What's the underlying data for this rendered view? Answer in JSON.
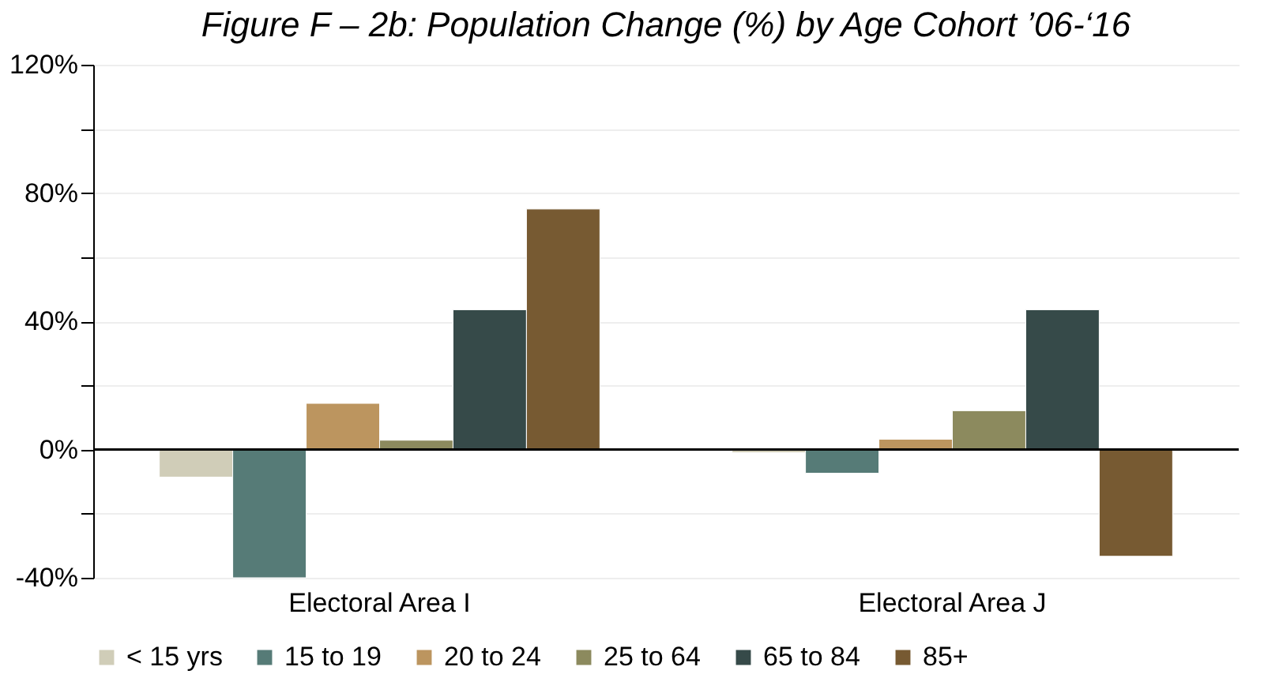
{
  "chart_data": {
    "type": "bar",
    "title": "Figure F – 2b: Population Change (%) by Age Cohort ’06-‘16",
    "categories": [
      "Electoral Area I",
      "Electoral Area J"
    ],
    "series": [
      {
        "name": "< 15 yrs",
        "color": "#d0cdb8",
        "values": [
          -8.6,
          -1
        ]
      },
      {
        "name": "15 to 19",
        "color": "#567b77",
        "values": [
          -40,
          -7.4
        ]
      },
      {
        "name": "20 to 24",
        "color": "#bc955f",
        "values": [
          14.4,
          3.2
        ]
      },
      {
        "name": "25 to 64",
        "color": "#8c8a5e",
        "values": [
          2.9,
          12.1
        ]
      },
      {
        "name": "65 to 84",
        "color": "#364a49",
        "values": [
          43.6,
          43.6
        ]
      },
      {
        "name": "85+",
        "color": "#775a32",
        "values": [
          75,
          -33.3
        ]
      }
    ],
    "ylim": [
      -40,
      120
    ],
    "yticks": [
      {
        "value": -40,
        "label": "-40%"
      },
      {
        "value": -20,
        "label": null
      },
      {
        "value": 0,
        "label": "0%"
      },
      {
        "value": 20,
        "label": null
      },
      {
        "value": 40,
        "label": "40%"
      },
      {
        "value": 60,
        "label": null
      },
      {
        "value": 80,
        "label": "80%"
      },
      {
        "value": 100,
        "label": null
      },
      {
        "value": 120,
        "label": "120%"
      }
    ],
    "grid": "y",
    "legend": "bottom"
  }
}
